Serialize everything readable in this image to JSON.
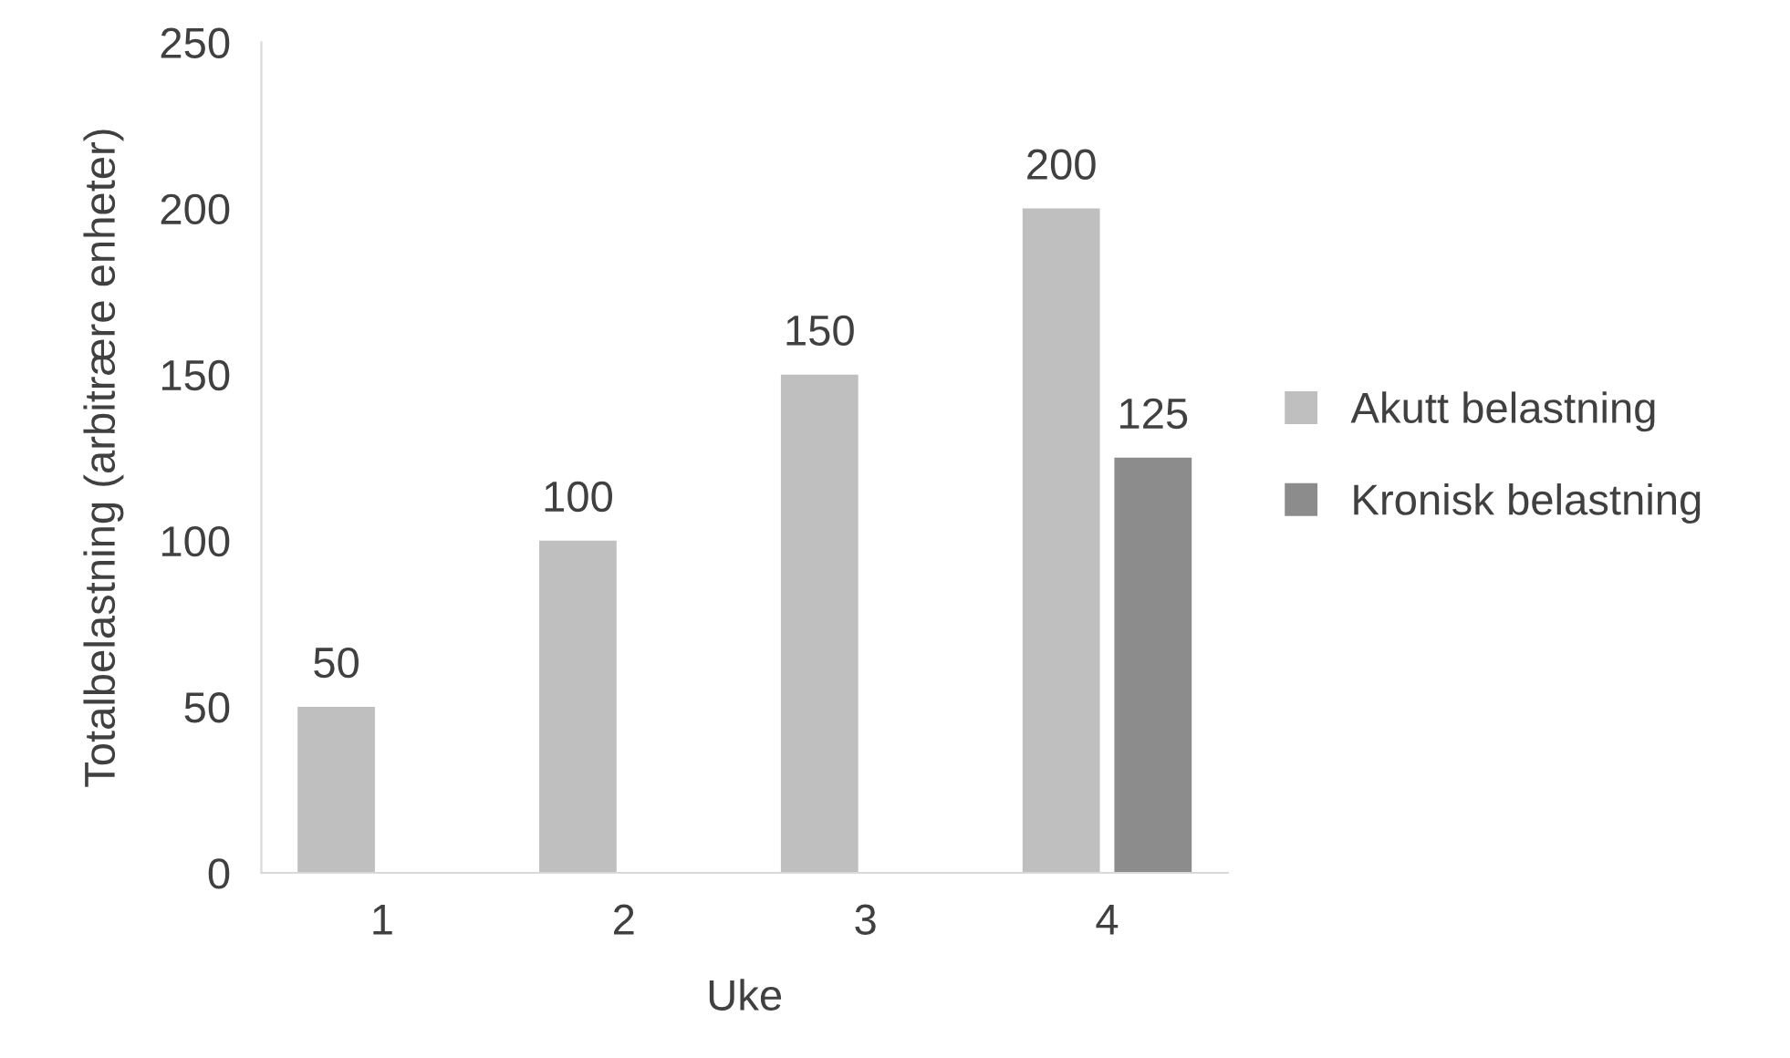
{
  "chart_data": {
    "type": "bar",
    "xlabel": "Uke",
    "ylabel": "Totalbelastning (arbitrære enheter)",
    "categories": [
      "1",
      "2",
      "3",
      "4"
    ],
    "series": [
      {
        "name": "Akutt belastning",
        "color": "#bfbfbf",
        "values": [
          50,
          100,
          150,
          200
        ]
      },
      {
        "name": "Kronisk belastning",
        "color": "#8c8c8c",
        "values": [
          null,
          null,
          null,
          125
        ]
      }
    ],
    "ylim": [
      0,
      250
    ],
    "yticks": [
      0,
      50,
      100,
      150,
      200,
      250
    ],
    "grid": false,
    "legend": "right",
    "data_labels": true
  }
}
